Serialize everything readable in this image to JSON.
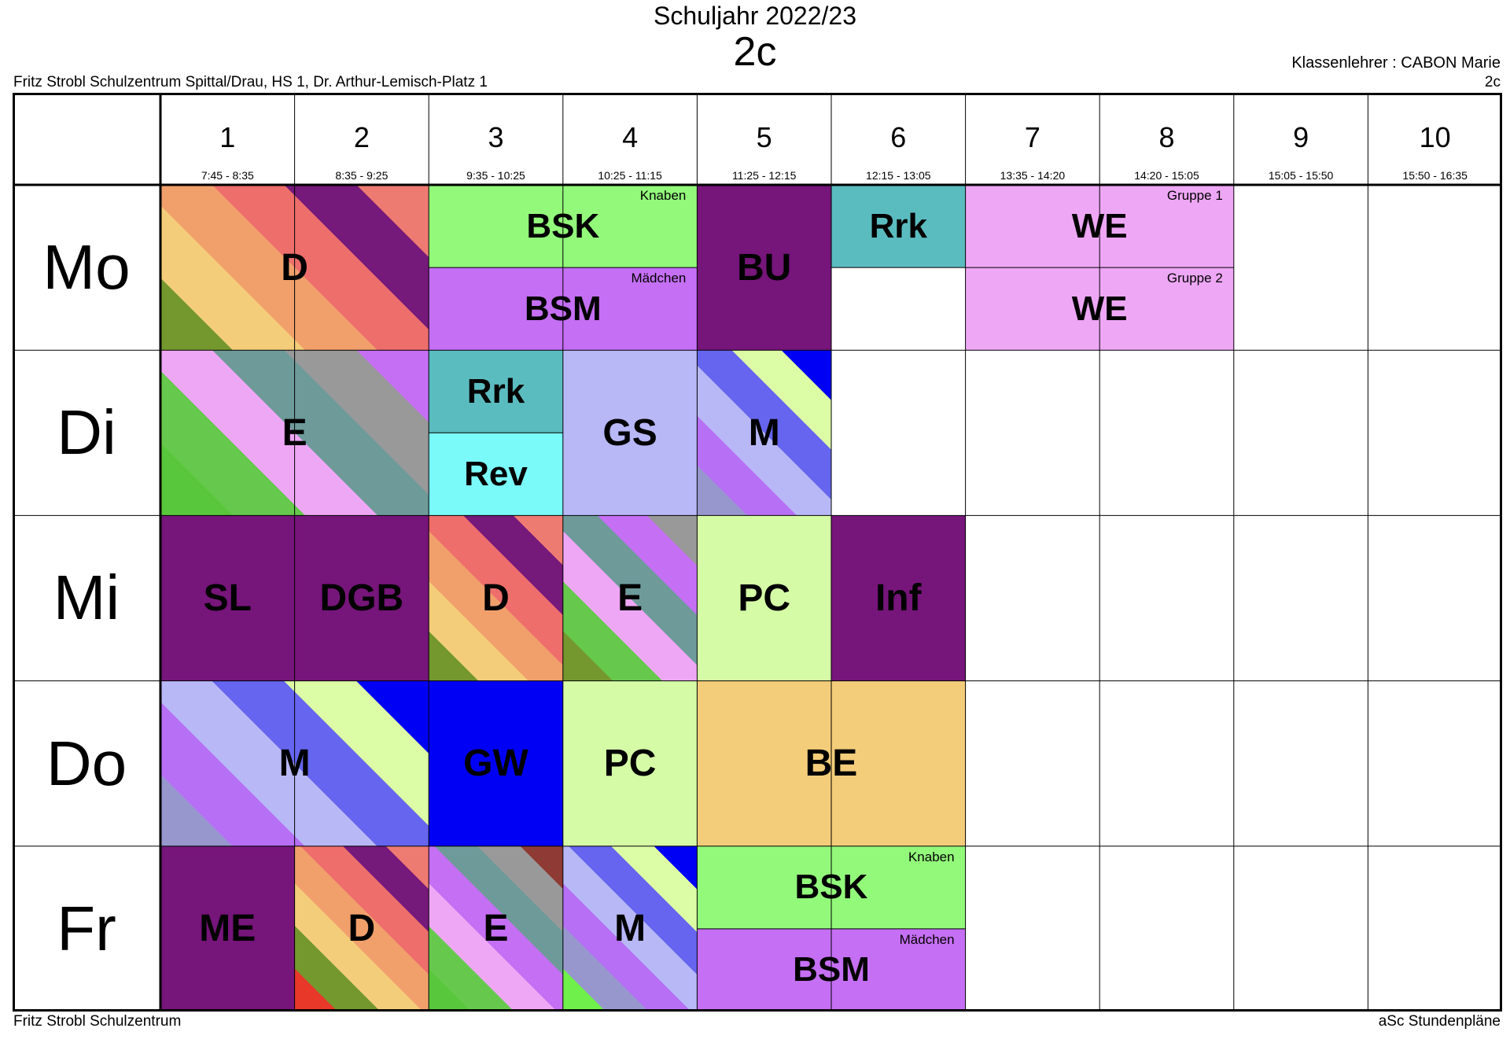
{
  "header": {
    "year": "Schuljahr 2022/23",
    "class_name": "2c",
    "school_address": "Fritz Strobl Schulzentrum Spittal/Drau, HS 1, Dr. Arthur-Lemisch-Platz 1",
    "teacher": "Klassenlehrer : CABON Marie",
    "teacher_class": "2c"
  },
  "periods": [
    {
      "num": "1",
      "time": "7:45 - 8:35"
    },
    {
      "num": "2",
      "time": "8:35 - 9:25"
    },
    {
      "num": "3",
      "time": "9:35 - 10:25"
    },
    {
      "num": "4",
      "time": "10:25 - 11:15"
    },
    {
      "num": "5",
      "time": "11:25 - 12:15"
    },
    {
      "num": "6",
      "time": "12:15 - 13:05"
    },
    {
      "num": "7",
      "time": "13:35 - 14:20"
    },
    {
      "num": "8",
      "time": "14:20 - 15:05"
    },
    {
      "num": "9",
      "time": "15:05 - 15:50"
    },
    {
      "num": "10",
      "time": "15:50 - 16:35"
    }
  ],
  "days": [
    "Mo",
    "Di",
    "Mi",
    "Do",
    "Fr"
  ],
  "lessons": [
    {
      "day": 0,
      "start": 0,
      "span": 2,
      "half": "full",
      "subject": "D",
      "colors": [
        "#ee7b72",
        "#75197a",
        "#ee6e6c",
        "#f1a06c",
        "#f4cd7a",
        "#74982e"
      ]
    },
    {
      "day": 0,
      "start": 2,
      "span": 2,
      "half": "top",
      "subject": "BSK",
      "note": "Knaben",
      "colors": [
        "#93f97b"
      ]
    },
    {
      "day": 0,
      "start": 2,
      "span": 2,
      "half": "bottom",
      "subject": "BSM",
      "note": "Mädchen",
      "colors": [
        "#c56ff4"
      ]
    },
    {
      "day": 0,
      "start": 4,
      "span": 1,
      "half": "full",
      "subject": "BU",
      "colors": [
        "#76157a"
      ]
    },
    {
      "day": 0,
      "start": 5,
      "span": 1,
      "half": "top",
      "subject": "Rrk",
      "colors": [
        "#5bbcbf"
      ]
    },
    {
      "day": 0,
      "start": 6,
      "span": 2,
      "half": "top",
      "subject": "WE",
      "note": "Gruppe 1",
      "colors": [
        "#eea7f5"
      ]
    },
    {
      "day": 0,
      "start": 6,
      "span": 2,
      "half": "bottom",
      "subject": "WE",
      "note": "Gruppe 2",
      "colors": [
        "#eea7f5"
      ]
    },
    {
      "day": 1,
      "start": 0,
      "span": 2,
      "half": "full",
      "subject": "E",
      "colors": [
        "#c56ff4",
        "#999999",
        "#6e9a9a",
        "#eea7f5",
        "#66c94d",
        "#58c73b"
      ]
    },
    {
      "day": 1,
      "start": 2,
      "span": 1,
      "half": "top",
      "subject": "Rrk",
      "colors": [
        "#5bbcbf"
      ]
    },
    {
      "day": 1,
      "start": 2,
      "span": 1,
      "half": "bottom",
      "subject": "Rev",
      "colors": [
        "#7bfafa"
      ]
    },
    {
      "day": 1,
      "start": 3,
      "span": 1,
      "half": "full",
      "subject": "GS",
      "colors": [
        "#b8b8f7"
      ]
    },
    {
      "day": 1,
      "start": 4,
      "span": 1,
      "half": "full",
      "subject": "M",
      "colors": [
        "#0000f4",
        "#dcfca5",
        "#6565ef",
        "#b8b8f7",
        "#b76ff5",
        "#9797ce"
      ]
    },
    {
      "day": 2,
      "start": 0,
      "span": 1,
      "half": "full",
      "subject": "SL",
      "colors": [
        "#76157a"
      ]
    },
    {
      "day": 2,
      "start": 1,
      "span": 1,
      "half": "full",
      "subject": "DGB",
      "colors": [
        "#76157a"
      ]
    },
    {
      "day": 2,
      "start": 2,
      "span": 1,
      "half": "full",
      "subject": "D",
      "colors": [
        "#ee7b72",
        "#75197a",
        "#ee6e6c",
        "#f1a06c",
        "#f4cd7a",
        "#74982e"
      ]
    },
    {
      "day": 2,
      "start": 3,
      "span": 1,
      "half": "full",
      "subject": "E",
      "colors": [
        "#999999",
        "#c56ff4",
        "#6e9a9a",
        "#eea7f5",
        "#66c94d",
        "#74982e"
      ]
    },
    {
      "day": 2,
      "start": 4,
      "span": 1,
      "half": "full",
      "subject": "PC",
      "colors": [
        "#d6fba6"
      ]
    },
    {
      "day": 2,
      "start": 5,
      "span": 1,
      "half": "full",
      "subject": "Inf",
      "colors": [
        "#76157a"
      ]
    },
    {
      "day": 3,
      "start": 0,
      "span": 2,
      "half": "full",
      "subject": "M",
      "colors": [
        "#0000f4",
        "#dcfca5",
        "#6565ef",
        "#b8b8f7",
        "#b76ff5",
        "#9797ce"
      ]
    },
    {
      "day": 3,
      "start": 2,
      "span": 1,
      "half": "full",
      "subject": "GW",
      "colors": [
        "#0000f4"
      ]
    },
    {
      "day": 3,
      "start": 3,
      "span": 1,
      "half": "full",
      "subject": "PC",
      "colors": [
        "#d6fba6"
      ]
    },
    {
      "day": 3,
      "start": 4,
      "span": 2,
      "half": "full",
      "subject": "BE",
      "colors": [
        "#f4cd7a"
      ]
    },
    {
      "day": 4,
      "start": 0,
      "span": 1,
      "half": "full",
      "subject": "ME",
      "colors": [
        "#76157a"
      ]
    },
    {
      "day": 4,
      "start": 1,
      "span": 1,
      "half": "full",
      "subject": "D",
      "colors": [
        "#ee7b72",
        "#75197a",
        "#ee6e6c",
        "#f1a06c",
        "#f4cd7a",
        "#74982e",
        "#e8382a"
      ]
    },
    {
      "day": 4,
      "start": 2,
      "span": 1,
      "half": "full",
      "subject": "E",
      "colors": [
        "#8f3a35",
        "#999999",
        "#6e9a9a",
        "#c56ff4",
        "#eea7f5",
        "#66c94d",
        "#58c73b"
      ]
    },
    {
      "day": 4,
      "start": 3,
      "span": 1,
      "half": "full",
      "subject": "M",
      "colors": [
        "#0000f4",
        "#dcfca5",
        "#6565ef",
        "#b8b8f7",
        "#b76ff5",
        "#9797ce",
        "#70f04a"
      ]
    },
    {
      "day": 4,
      "start": 4,
      "span": 2,
      "half": "top",
      "subject": "BSK",
      "note": "Knaben",
      "colors": [
        "#93f97b"
      ]
    },
    {
      "day": 4,
      "start": 4,
      "span": 2,
      "half": "bottom",
      "subject": "BSM",
      "note": "Mädchen",
      "colors": [
        "#c56ff4"
      ]
    }
  ],
  "footer": {
    "left": "Fritz Strobl Schulzentrum",
    "right": "aSc Stundenpläne"
  }
}
